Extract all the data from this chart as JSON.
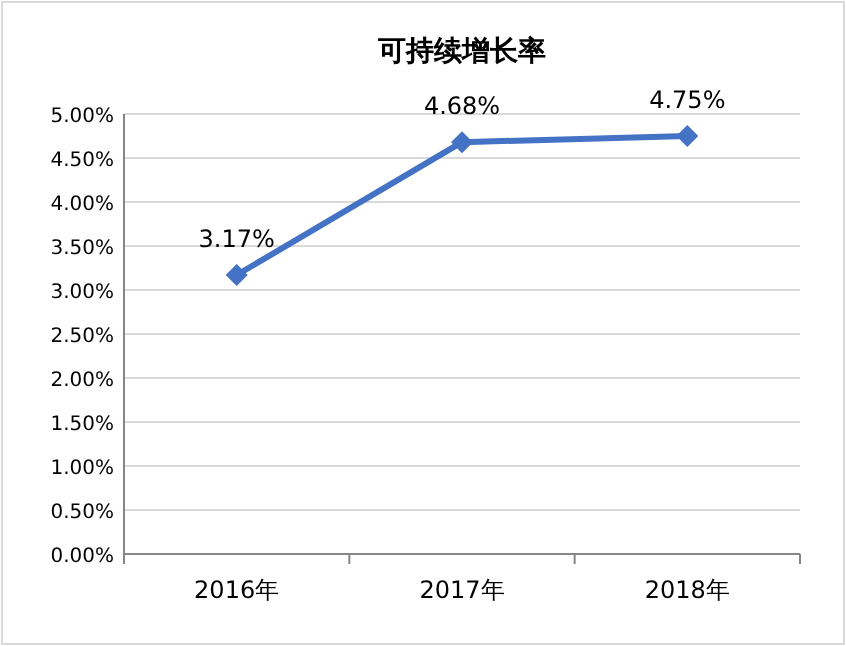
{
  "chart_data": {
    "type": "line",
    "title": "可持续增长率",
    "categories": [
      "2016年",
      "2017年",
      "2018年"
    ],
    "series": [
      {
        "color": "#4472c4",
        "values": [
          3.17,
          4.68,
          4.75
        ],
        "value_labels": [
          "3.17%",
          "4.68%",
          "4.75%"
        ]
      }
    ],
    "ylim": [
      0,
      5
    ],
    "yticks": [
      {
        "value": 0,
        "label": "0.00%"
      },
      {
        "value": 0.5,
        "label": "0.50%"
      },
      {
        "value": 1,
        "label": "1.00%"
      },
      {
        "value": 1.5,
        "label": "1.50%"
      },
      {
        "value": 2,
        "label": "2.00%"
      },
      {
        "value": 2.5,
        "label": "2.50%"
      },
      {
        "value": 3,
        "label": "3.00%"
      },
      {
        "value": 3.5,
        "label": "3.50%"
      },
      {
        "value": 4,
        "label": "4.00%"
      },
      {
        "value": 4.5,
        "label": "4.50%"
      },
      {
        "value": 5,
        "label": "5.00%"
      }
    ],
    "grid": "y",
    "marker": "diamond",
    "line_style": "solid"
  }
}
